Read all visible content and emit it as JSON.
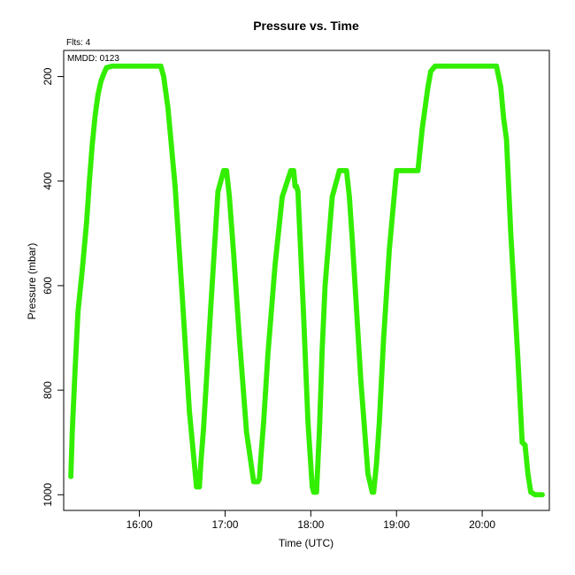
{
  "chart_data": {
    "type": "scatter",
    "title": "Pressure  vs. Time",
    "xlabel": "Time (UTC)",
    "ylabel": "Pressure (mbar)",
    "annotations": {
      "flights": "Flts: 4",
      "date": "MMDD: 0123"
    },
    "x_ticks": [
      "16:00",
      "17:00",
      "18:00",
      "19:00",
      "20:00"
    ],
    "y_ticks": [
      "200",
      "400",
      "600",
      "800",
      "1000"
    ],
    "xlim": [
      "15:07",
      "20:47"
    ],
    "ylim": [
      1030,
      150
    ],
    "grid": false,
    "legend": "none",
    "color": "#33ee00",
    "series": [
      {
        "x": [
          "15:12",
          "15:13",
          "15:15",
          "15:17",
          "15:20",
          "15:23",
          "15:25",
          "15:27",
          "15:29",
          "15:31",
          "15:33",
          "15:35",
          "15:37",
          "15:41",
          "15:45",
          "15:50",
          "15:55",
          "16:00",
          "16:05",
          "16:10",
          "16:15",
          "16:17",
          "16:20",
          "16:25",
          "16:30",
          "16:35",
          "16:40",
          "16:42",
          "16:43",
          "16:45",
          "16:50",
          "16:55",
          "16:59",
          "17:01",
          "17:03",
          "17:06",
          "17:10",
          "17:15",
          "17:20",
          "17:23",
          "17:24",
          "17:25",
          "17:27",
          "17:30",
          "17:35",
          "17:40",
          "17:46",
          "17:48",
          "17:49",
          "17:50",
          "17:51",
          "17:52",
          "17:55",
          "17:58",
          "18:01",
          "18:02",
          "18:04",
          "18:06",
          "18:08",
          "18:10",
          "18:15",
          "18:20",
          "18:25",
          "18:27",
          "18:29",
          "18:31",
          "18:35",
          "18:40",
          "18:43",
          "18:44",
          "18:46",
          "18:48",
          "18:51",
          "18:55",
          "19:00",
          "19:03",
          "19:06",
          "19:10",
          "19:15",
          "19:18",
          "19:20",
          "19:22",
          "19:24",
          "19:27",
          "19:30",
          "19:33",
          "19:35",
          "19:40",
          "19:45",
          "19:50",
          "19:55",
          "20:00",
          "20:05",
          "20:10",
          "20:13",
          "20:15",
          "20:17",
          "20:20",
          "20:25",
          "20:28",
          "20:30",
          "20:32",
          "20:34",
          "20:37",
          "20:38",
          "20:39",
          "20:40",
          "20:42"
        ],
        "y": [
          965,
          880,
          760,
          650,
          570,
          480,
          400,
          330,
          275,
          235,
          210,
          195,
          183,
          180,
          180,
          180,
          180,
          180,
          180,
          180,
          180,
          200,
          260,
          410,
          620,
          840,
          985,
          985,
          940,
          870,
          640,
          420,
          380,
          380,
          430,
          540,
          700,
          880,
          975,
          975,
          970,
          930,
          860,
          730,
          560,
          430,
          380,
          380,
          410,
          410,
          420,
          480,
          660,
          860,
          985,
          995,
          995,
          880,
          720,
          600,
          430,
          380,
          380,
          430,
          510,
          600,
          780,
          960,
          995,
          995,
          940,
          860,
          700,
          530,
          380,
          380,
          380,
          380,
          380,
          300,
          260,
          220,
          190,
          180,
          180,
          180,
          180,
          180,
          180,
          180,
          180,
          180,
          180,
          180,
          220,
          280,
          320,
          500,
          740,
          900,
          905,
          960,
          995,
          1000,
          1000,
          1000,
          1000,
          1000
        ]
      }
    ]
  }
}
